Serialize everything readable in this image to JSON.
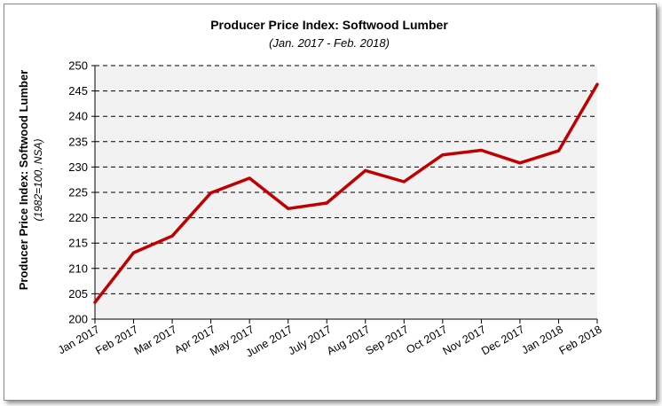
{
  "chart_data": {
    "type": "line",
    "title": "Producer Price Index: Softwood Lumber",
    "subtitle": "(Jan. 2017 - Feb. 2018)",
    "ylabel": "Producer Price Index: Softwood Lumber",
    "ylabel_sub": "(1982=100, NSA)",
    "xlabel": "",
    "categories": [
      "Jan 2017",
      "Feb 2017",
      "Mar 2017",
      "Apr 2017",
      "May 2017",
      "June 2017",
      "July 2017",
      "Aug 2017",
      "Sep 2017",
      "Oct 2017",
      "Nov 2017",
      "Dec 2017",
      "Jan 2018",
      "Feb 2018"
    ],
    "series": [
      {
        "values": [
          203.3,
          213.1,
          216.4,
          224.9,
          227.8,
          221.8,
          222.9,
          229.3,
          227.1,
          232.4,
          233.3,
          230.8,
          233.2,
          246.3
        ]
      }
    ],
    "ylim": [
      200,
      250
    ],
    "yticks": [
      "200",
      "205",
      "210",
      "215",
      "220",
      "225",
      "230",
      "235",
      "240",
      "245",
      "250"
    ],
    "grid": true,
    "line_color": "#c00000",
    "plot_background": "#f2f2f2"
  }
}
